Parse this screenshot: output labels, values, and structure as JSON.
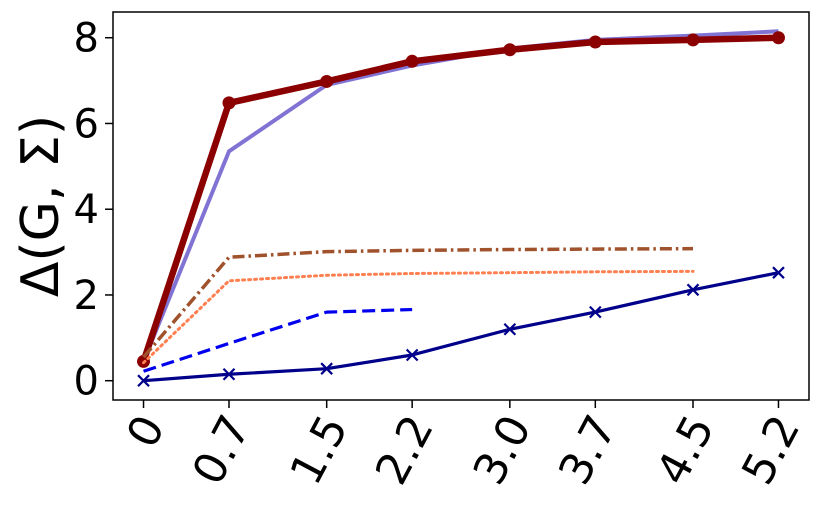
{
  "chart_data": {
    "type": "line",
    "title": "",
    "xlabel": "",
    "ylabel": "Δ(G, Σ)",
    "categories": [
      "0",
      "0.7",
      "1.5",
      "2.2",
      "3.0",
      "3.7",
      "4.5",
      "5.2"
    ],
    "x": [
      0,
      0.7,
      1.5,
      2.2,
      3.0,
      3.7,
      4.5,
      5.2
    ],
    "xlim": [
      -0.25,
      5.45
    ],
    "ylim": [
      -0.45,
      8.6
    ],
    "yticks": [
      0,
      2,
      4,
      6,
      8
    ],
    "grid": false,
    "legend": "none",
    "series": [
      {
        "values": [
          0.45,
          5.35,
          6.9,
          7.35,
          7.75,
          7.95,
          8.05,
          8.15
        ],
        "color": "#6a5acd",
        "style": "solid",
        "marker": "none"
      },
      {
        "values": [
          0.45,
          6.48,
          6.98,
          7.45,
          7.72,
          7.9,
          7.95,
          8.0
        ],
        "color": "#8b0000",
        "style": "solid",
        "marker": "circle"
      },
      {
        "values": [
          0.55,
          2.88,
          3.01,
          3.04,
          3.06,
          3.07,
          3.08,
          null
        ],
        "color": "#a0522d",
        "style": "dashdot",
        "marker": "none"
      },
      {
        "values": [
          0.42,
          2.33,
          2.46,
          2.5,
          2.52,
          2.54,
          2.55,
          null
        ],
        "color": "#ff7f50",
        "style": "dotted",
        "marker": "none"
      },
      {
        "values": [
          0.22,
          0.87,
          1.6,
          1.66,
          null,
          null,
          null,
          null
        ],
        "color": "#0000ee",
        "style": "dashed",
        "marker": "none"
      },
      {
        "values": [
          0.0,
          0.15,
          0.28,
          0.6,
          1.2,
          1.6,
          2.12,
          2.52
        ],
        "color": "#00008b",
        "style": "solid",
        "marker": "x"
      }
    ]
  }
}
